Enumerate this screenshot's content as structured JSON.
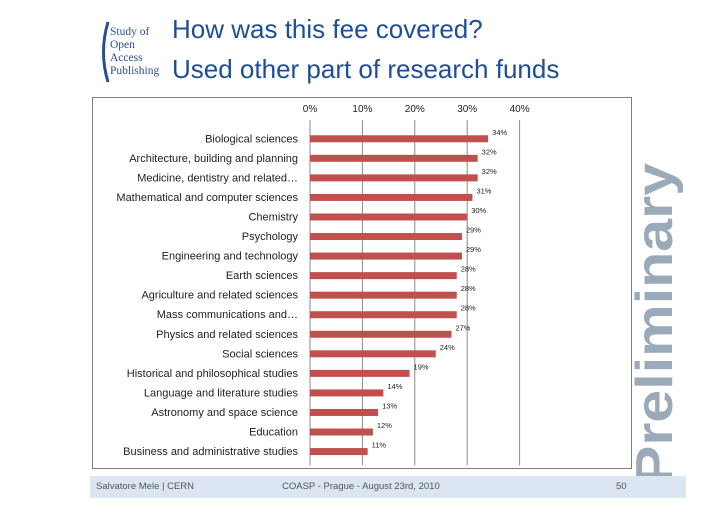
{
  "header": {
    "logo_lines": [
      "Study of",
      "Open",
      "Access",
      "Publishing"
    ],
    "title_line1": "How was this fee covered?",
    "title_line2": "Used other part of research funds"
  },
  "watermark": {
    "text": "Preliminary"
  },
  "footer": {
    "author": "Salvatore Mele | CERN",
    "event": "COASP - Prague - August 23rd, 2010",
    "page": "50"
  },
  "colors": {
    "bar": "#c0504d",
    "title": "#1f4e96",
    "footer_bg": "#dce6f2"
  },
  "chart_data": {
    "type": "bar",
    "orientation": "horizontal",
    "xlim": [
      0,
      40
    ],
    "x_ticks": [
      "0%",
      "10%",
      "20%",
      "30%",
      "40%"
    ],
    "x_axis_position": "top",
    "grid": true,
    "categories": [
      "Biological sciences",
      "Architecture, building and planning",
      "Medicine, dentistry and related…",
      "Mathematical and computer sciences",
      "Chemistry",
      "Psychology",
      "Engineering and technology",
      "Earth sciences",
      "Agriculture and related sciences",
      "Mass communications and…",
      "Physics and related sciences",
      "Social sciences",
      "Historical and philosophical studies",
      "Language and literature studies",
      "Astronomy and space science",
      "Education",
      "Business and administrative studies"
    ],
    "values": [
      34,
      32,
      32,
      31,
      30,
      29,
      29,
      28,
      28,
      28,
      27,
      24,
      19,
      14,
      13,
      12,
      11
    ],
    "data_labels": [
      "34%",
      "32%",
      "32%",
      "31%",
      "30%",
      "29%",
      "29%",
      "28%",
      "28%",
      "28%",
      "27%",
      "24%",
      "19%",
      "14%",
      "13%",
      "12%",
      "11%"
    ]
  }
}
